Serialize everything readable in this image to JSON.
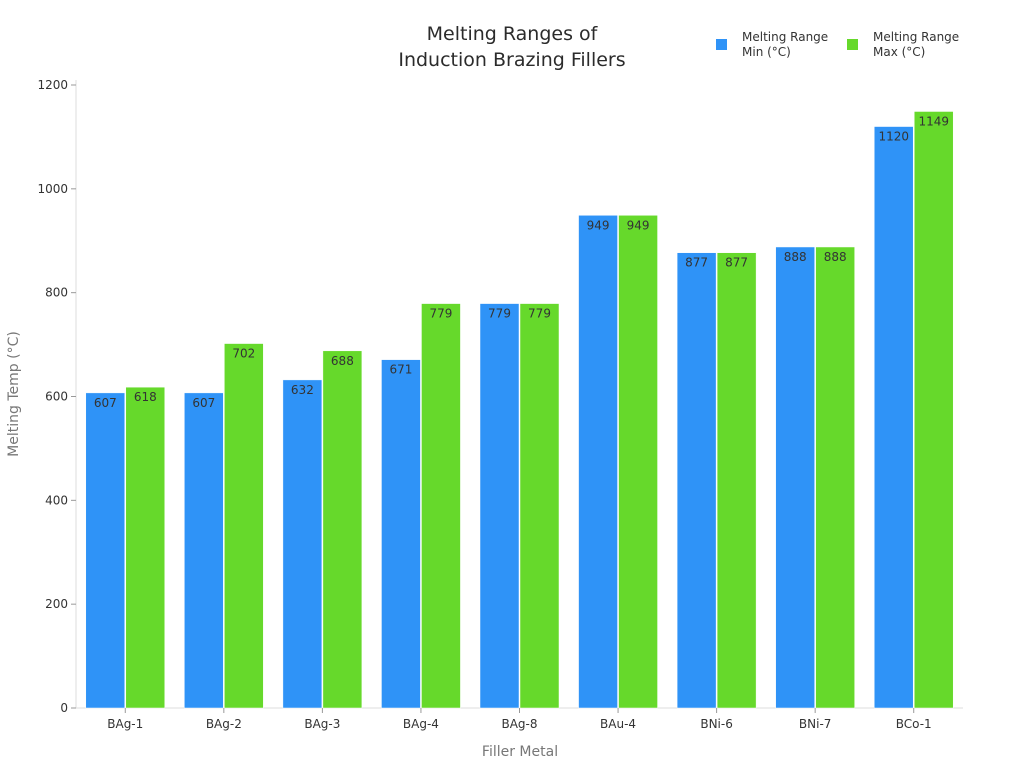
{
  "chart_data": {
    "type": "bar",
    "title_lines": [
      "Melting Ranges of",
      "Induction Brazing Fillers"
    ],
    "xlabel": "Filler Metal",
    "ylabel": "Melting Temp (°C)",
    "ylim": [
      0,
      1200
    ],
    "yticks": [
      0,
      200,
      400,
      600,
      800,
      1000,
      1200
    ],
    "grid": false,
    "legend_position": "top-right",
    "categories": [
      "BAg-1",
      "BAg-2",
      "BAg-3",
      "BAg-4",
      "BAg-8",
      "BAu-4",
      "BNi-6",
      "BNi-7",
      "BCo-1"
    ],
    "series": [
      {
        "name_lines": [
          "Melting Range",
          "Min (°C)"
        ],
        "color": "#2f93f7",
        "values": [
          607,
          607,
          632,
          671,
          779,
          949,
          877,
          888,
          1120
        ]
      },
      {
        "name_lines": [
          "Melting Range",
          "Max (°C)"
        ],
        "color": "#66d92b",
        "values": [
          618,
          702,
          688,
          779,
          779,
          949,
          877,
          888,
          1149
        ]
      }
    ]
  }
}
